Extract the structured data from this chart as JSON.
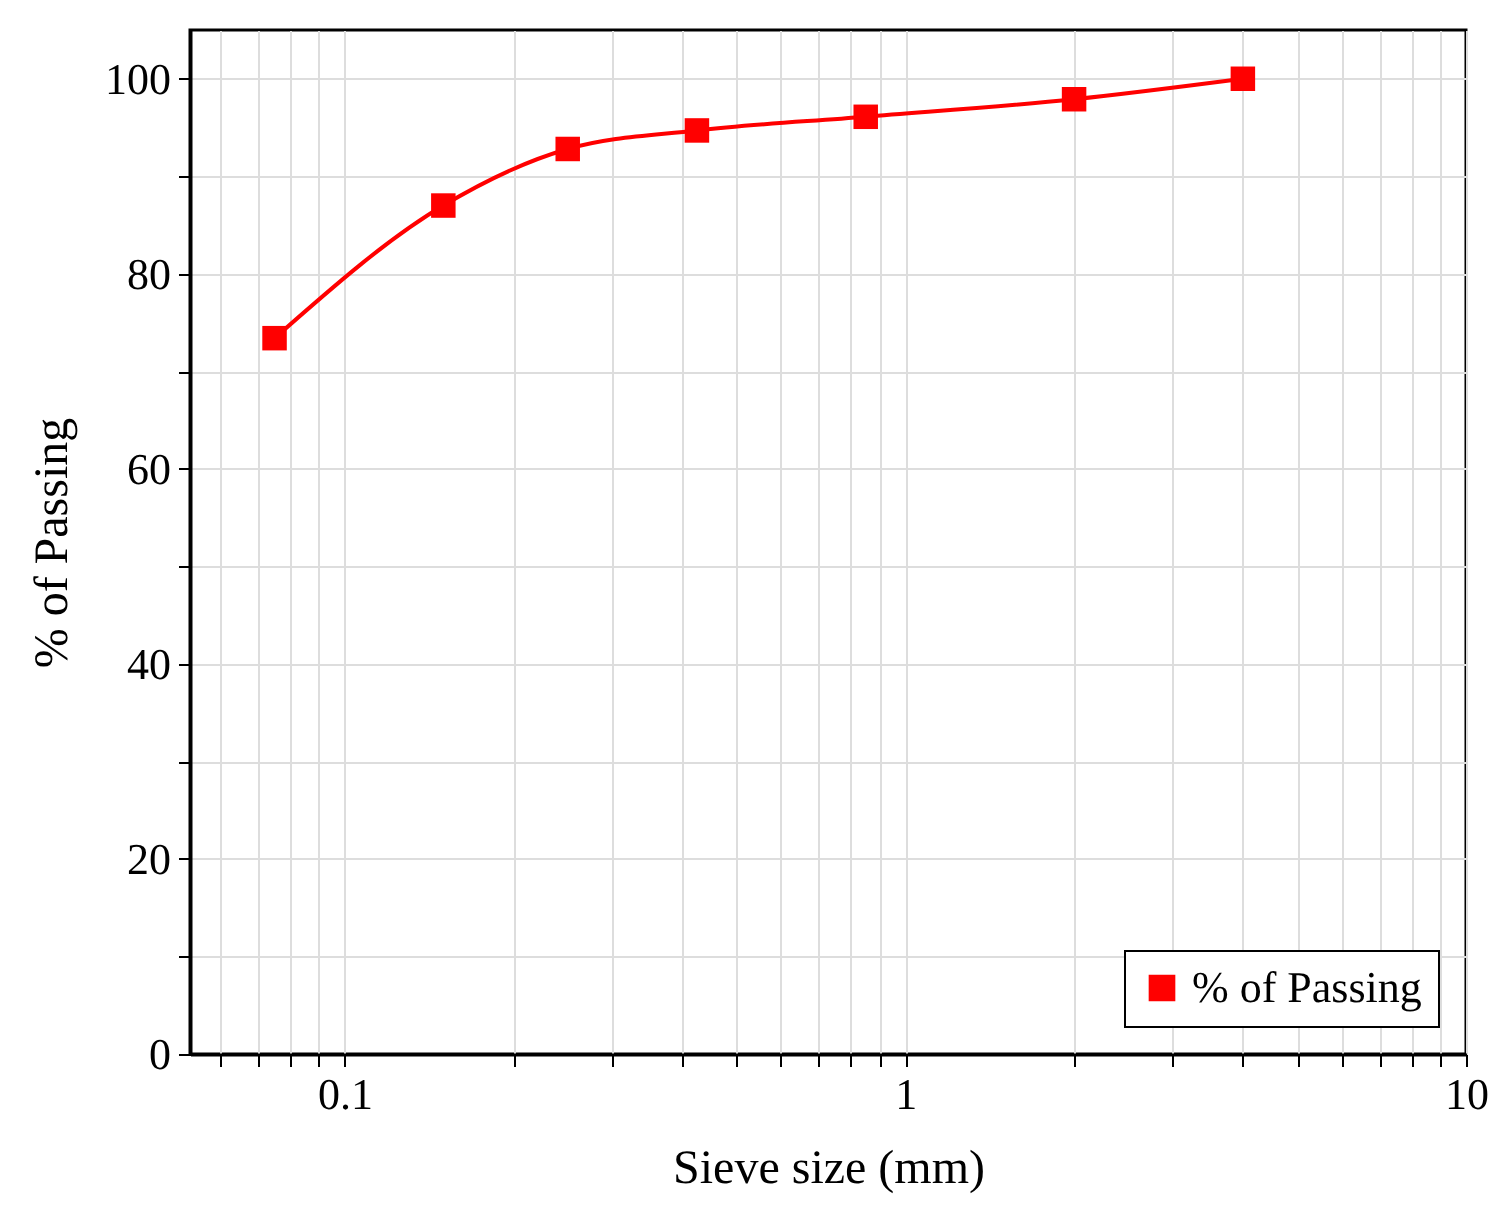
{
  "chart_data": {
    "type": "line",
    "xlabel": "Sieve size (mm)",
    "ylabel": "% of Passing",
    "x": [
      0.075,
      0.15,
      0.25,
      0.425,
      0.85,
      2,
      4
    ],
    "series": [
      {
        "name": "% of Passing",
        "color": "#ff0000",
        "values": [
          73.4,
          87.0,
          92.8,
          94.7,
          96.1,
          97.9,
          100
        ]
      }
    ],
    "log": "x",
    "xlim": [
      0.053,
      10
    ],
    "xticks": [
      {
        "value": 0.06,
        "label": null
      },
      {
        "value": 0.07,
        "label": null
      },
      {
        "value": 0.08,
        "label": null
      },
      {
        "value": 0.09,
        "label": null
      },
      0.1,
      {
        "value": 0.2,
        "label": null
      },
      {
        "value": 0.3,
        "label": null
      },
      {
        "value": 0.4,
        "label": null
      },
      {
        "value": 0.5,
        "label": null
      },
      {
        "value": 0.6,
        "label": null
      },
      {
        "value": 0.7,
        "label": null
      },
      {
        "value": 0.8,
        "label": null
      },
      {
        "value": 0.9,
        "label": null
      },
      1,
      {
        "value": 2,
        "label": null
      },
      {
        "value": 3,
        "label": null
      },
      {
        "value": 4,
        "label": null
      },
      {
        "value": 5,
        "label": null
      },
      {
        "value": 6,
        "label": null
      },
      {
        "value": 7,
        "label": null
      },
      {
        "value": 8,
        "label": null
      },
      {
        "value": 9,
        "label": null
      },
      10
    ],
    "ylim": [
      0,
      105
    ],
    "yticks": [
      0,
      {
        "value": 10,
        "label": null
      },
      20,
      {
        "value": 30,
        "label": null
      },
      40,
      {
        "value": 50,
        "label": null
      },
      60,
      {
        "value": 70,
        "label": null
      },
      80,
      {
        "value": 90,
        "label": null
      },
      100
    ],
    "grid": true,
    "legend": "bottom right",
    "marker": "square",
    "line_style": "solid"
  }
}
